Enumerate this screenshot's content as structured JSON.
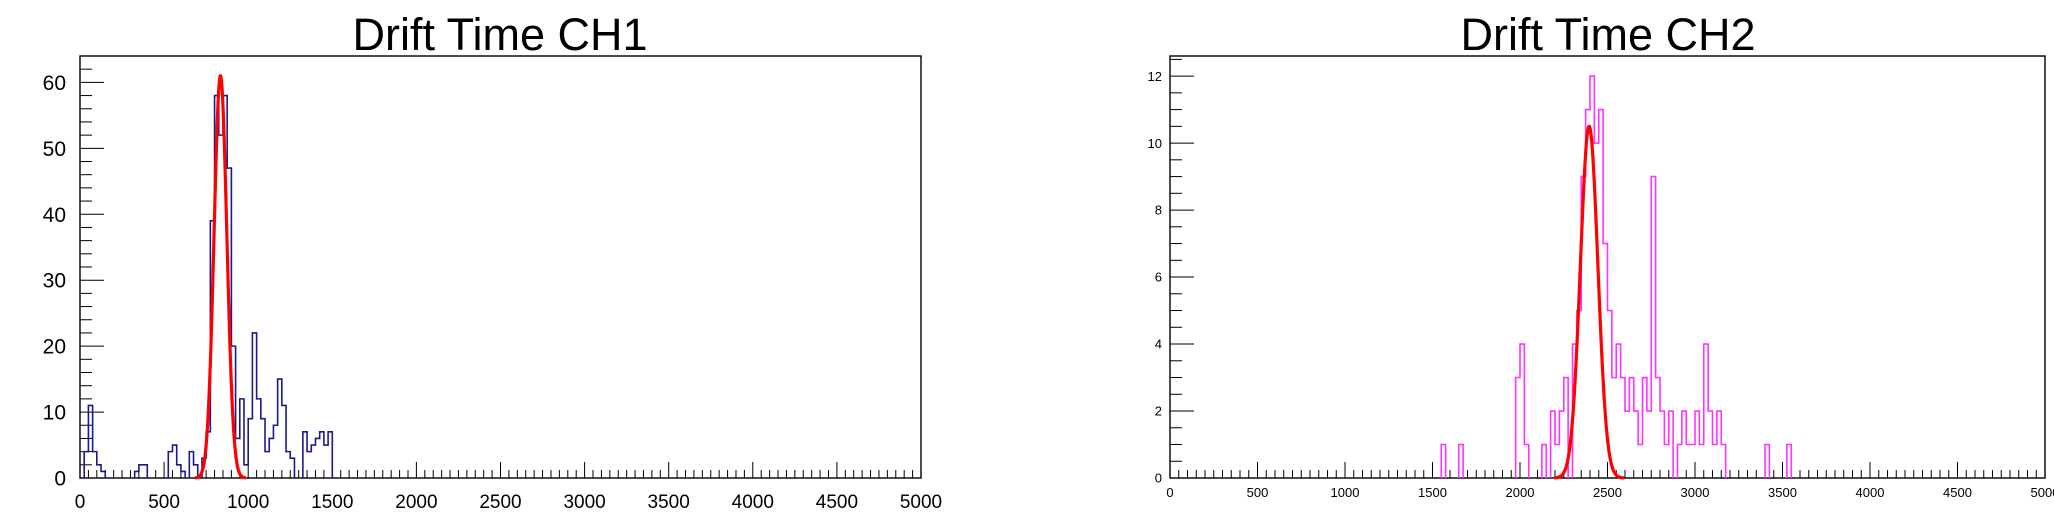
{
  "chart_data": [
    {
      "type": "histogram",
      "title": "Drift Time CH1",
      "xlabel": "",
      "ylabel": "",
      "xlim": [
        0,
        5000
      ],
      "ylim": [
        0,
        64
      ],
      "xticks": [
        0,
        500,
        1000,
        1500,
        2000,
        2500,
        3000,
        3500,
        4000,
        4500,
        5000
      ],
      "xtick_labels": [
        "0",
        "500",
        "1000",
        "1500",
        "2000",
        "2500",
        "3000",
        "3500",
        "4000",
        "4500",
        "5000"
      ],
      "yticks": [
        0,
        10,
        20,
        30,
        40,
        50,
        60
      ],
      "ytick_labels": [
        "0",
        "10",
        "20",
        "30",
        "40",
        "50",
        "60"
      ],
      "bin_width": 25,
      "series": [
        {
          "color": "#1a1a8c",
          "bins": [
            [
              25,
              4
            ],
            [
              50,
              11
            ],
            [
              75,
              4
            ],
            [
              100,
              2
            ],
            [
              125,
              1
            ],
            [
              325,
              1
            ],
            [
              350,
              2
            ],
            [
              375,
              2
            ],
            [
              525,
              4
            ],
            [
              550,
              5
            ],
            [
              575,
              2
            ],
            [
              600,
              1
            ],
            [
              650,
              4
            ],
            [
              675,
              2
            ],
            [
              725,
              3
            ],
            [
              750,
              7
            ],
            [
              775,
              39
            ],
            [
              800,
              58
            ],
            [
              825,
              52
            ],
            [
              850,
              58
            ],
            [
              875,
              47
            ],
            [
              900,
              20
            ],
            [
              925,
              6
            ],
            [
              950,
              12
            ],
            [
              975,
              2
            ],
            [
              1000,
              9
            ],
            [
              1025,
              22
            ],
            [
              1050,
              12
            ],
            [
              1075,
              9
            ],
            [
              1100,
              4
            ],
            [
              1125,
              6
            ],
            [
              1150,
              8
            ],
            [
              1175,
              15
            ],
            [
              1200,
              11
            ],
            [
              1225,
              4
            ],
            [
              1250,
              3
            ],
            [
              1325,
              7
            ],
            [
              1350,
              4
            ],
            [
              1375,
              5
            ],
            [
              1400,
              6
            ],
            [
              1425,
              7
            ],
            [
              1450,
              5
            ],
            [
              1475,
              7
            ]
          ]
        }
      ],
      "fit": {
        "type": "gaussian",
        "color": "#ff0000",
        "amplitude": 61,
        "mean": 835,
        "sigma": 38
      }
    },
    {
      "type": "histogram",
      "title": "Drift Time CH2",
      "xlabel": "",
      "ylabel": "",
      "xlim": [
        0,
        5000
      ],
      "ylim": [
        0,
        12.6
      ],
      "xticks": [
        0,
        500,
        1000,
        1500,
        2000,
        2500,
        3000,
        3500,
        4000,
        4500,
        5000
      ],
      "xtick_labels": [
        "0",
        "500",
        "1000",
        "1500",
        "2000",
        "2500",
        "3000",
        "3500",
        "4000",
        "4500",
        "5000"
      ],
      "yticks": [
        0,
        2,
        4,
        6,
        8,
        10,
        12
      ],
      "ytick_labels": [
        "0",
        "2",
        "4",
        "6",
        "8",
        "10",
        "12"
      ],
      "bin_width": 25,
      "series": [
        {
          "color": "#ff33ff",
          "bins": [
            [
              1550,
              1
            ],
            [
              1650,
              1
            ],
            [
              1975,
              3
            ],
            [
              2000,
              4
            ],
            [
              2025,
              1
            ],
            [
              2125,
              1
            ],
            [
              2175,
              2
            ],
            [
              2200,
              1
            ],
            [
              2225,
              2
            ],
            [
              2250,
              3
            ],
            [
              2300,
              4
            ],
            [
              2325,
              5
            ],
            [
              2350,
              9
            ],
            [
              2375,
              11
            ],
            [
              2400,
              12
            ],
            [
              2425,
              10
            ],
            [
              2450,
              11
            ],
            [
              2475,
              7
            ],
            [
              2500,
              5
            ],
            [
              2525,
              3
            ],
            [
              2550,
              4
            ],
            [
              2575,
              3
            ],
            [
              2600,
              2
            ],
            [
              2625,
              3
            ],
            [
              2650,
              2
            ],
            [
              2675,
              1
            ],
            [
              2700,
              3
            ],
            [
              2725,
              2
            ],
            [
              2750,
              9
            ],
            [
              2775,
              3
            ],
            [
              2800,
              2
            ],
            [
              2825,
              1
            ],
            [
              2850,
              2
            ],
            [
              2900,
              1
            ],
            [
              2925,
              2
            ],
            [
              2950,
              1
            ],
            [
              2975,
              1
            ],
            [
              3000,
              2
            ],
            [
              3025,
              1
            ],
            [
              3050,
              4
            ],
            [
              3075,
              2
            ],
            [
              3100,
              1
            ],
            [
              3125,
              2
            ],
            [
              3150,
              1
            ],
            [
              3400,
              1
            ],
            [
              3525,
              1
            ]
          ]
        }
      ],
      "fit": {
        "type": "gaussian",
        "color": "#ff0000",
        "amplitude": 10.5,
        "mean": 2395,
        "sigma": 50
      }
    }
  ]
}
